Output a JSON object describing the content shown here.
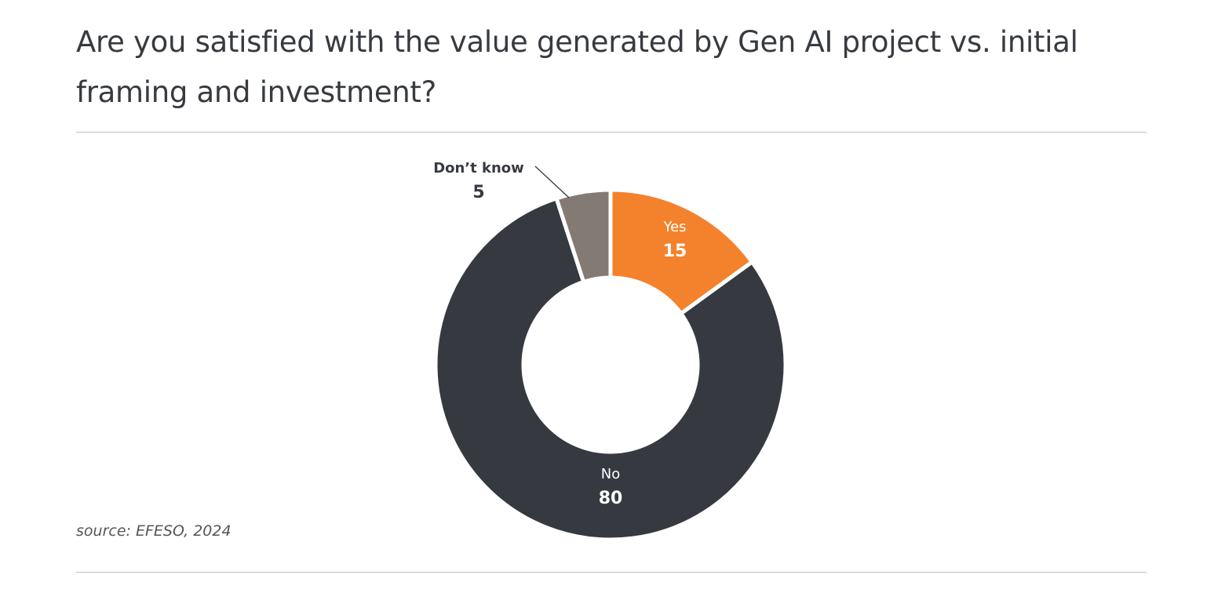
{
  "title": "Are you satisfied with the value generated by Gen AI project vs. initial framing and investment?",
  "source": "source: EFESO, 2024",
  "chart_data": {
    "type": "pie",
    "donut": true,
    "title": "Are you satisfied with the value generated by Gen AI project vs. initial framing and investment?",
    "categories": [
      "Yes",
      "No",
      "Don’t know"
    ],
    "values": [
      15,
      80,
      5
    ],
    "colors": [
      "#f4812c",
      "#363a40",
      "#847a74"
    ],
    "label_colors": [
      "#ffffff",
      "#ffffff",
      "#373a40"
    ],
    "start": "12 o'clock, clockwise",
    "legend": "none (inline labels)"
  }
}
